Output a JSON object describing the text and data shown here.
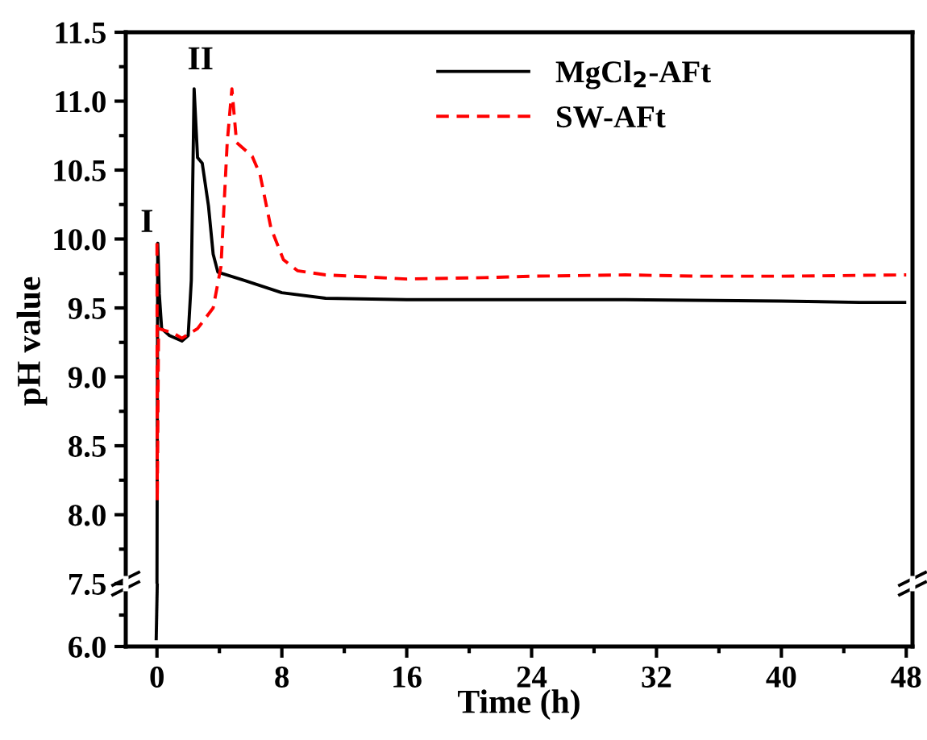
{
  "chart_data": [
    {
      "type": "line",
      "ylabel": "pH value",
      "xlim": [
        -2,
        48.4
      ],
      "xticks": [
        0,
        8,
        16,
        24,
        32,
        40,
        48
      ],
      "ylim": [
        7.5,
        11.5
      ],
      "yticks": [
        {
          "value": 7.5,
          "label": null
        },
        {
          "value": 8.0,
          "label": "8.0"
        },
        8.5,
        {
          "value": 9.0,
          "label": "9.0"
        },
        9.5,
        {
          "value": 10.0,
          "label": "10.0"
        },
        10.5,
        {
          "value": 11.0,
          "label": "11.0"
        },
        11.5
      ],
      "tick_labels": "y",
      "legend": "top right",
      "annotations": [
        "I",
        "II"
      ],
      "series": [
        {
          "name": "MgCl$_{2}$-AFt",
          "color": "#000000",
          "line_style": "solid",
          "x": [
            0,
            0.05,
            0.15,
            0.3,
            0.8,
            1.6,
            2.0,
            2.2,
            2.38,
            2.6,
            2.9,
            3.3,
            3.6,
            3.9,
            5.6,
            8,
            10.8,
            16,
            21,
            30,
            40,
            45,
            48
          ],
          "values": [
            7.5,
            9.97,
            9.6,
            9.35,
            9.3,
            9.26,
            9.3,
            9.7,
            11.09,
            10.59,
            10.55,
            10.24,
            9.89,
            9.76,
            9.7,
            9.61,
            9.57,
            9.56,
            9.56,
            9.56,
            9.55,
            9.54,
            9.54
          ]
        },
        {
          "name": "SW-AFt",
          "color": "#ff0000",
          "line_style": "dashed",
          "x": [
            0,
            0.02,
            0.1,
            1.0,
            1.6,
            2.6,
            3.6,
            4.1,
            4.5,
            4.8,
            5.1,
            6.1,
            6.6,
            7.3,
            8.1,
            9,
            10.8,
            16,
            21,
            24,
            30,
            34.7,
            40,
            48
          ],
          "values": [
            9.97,
            8.1,
            9.35,
            9.32,
            9.28,
            9.35,
            9.5,
            9.8,
            10.7,
            11.09,
            10.7,
            10.6,
            10.47,
            10.08,
            9.85,
            9.77,
            9.74,
            9.71,
            9.72,
            9.73,
            9.74,
            9.73,
            9.73,
            9.74
          ]
        }
      ]
    },
    {
      "type": "line",
      "xlabel": "Time (h)",
      "xlim": [
        -2,
        48.4
      ],
      "xticks": [
        0,
        8,
        16,
        24,
        32,
        40,
        48
      ],
      "ylim": [
        6.0,
        7.5
      ],
      "yticks": [
        {
          "value": 6.0,
          "label": "6.0"
        },
        7.5
      ],
      "series": [
        {
          "color": "#000000",
          "line_style": "solid",
          "x": [
            -0.05,
            0.02
          ],
          "values": [
            6.15,
            7.5
          ]
        }
      ]
    }
  ]
}
